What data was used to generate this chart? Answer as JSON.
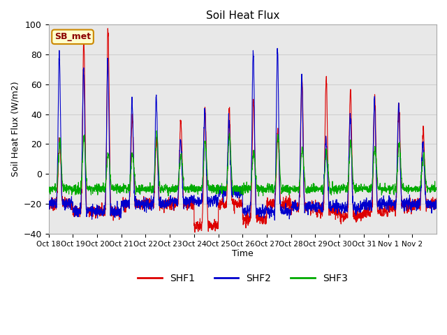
{
  "title": "Soil Heat Flux",
  "ylabel": "Soil Heat Flux (W/m2)",
  "xlabel": "Time",
  "ylim": [
    -40,
    100
  ],
  "grid_color": "#d0d0d0",
  "bg_color": "#e8e8e8",
  "annotation_text": "SB_met",
  "annotation_bg": "#ffffcc",
  "annotation_border": "#cc8800",
  "annotation_text_color": "#8b0000",
  "legend_labels": [
    "SHF1",
    "SHF2",
    "SHF3"
  ],
  "line_colors": [
    "#dd0000",
    "#0000cc",
    "#00aa00"
  ],
  "xtick_labels": [
    "Oct 18",
    "Oct 19",
    "Oct 20",
    "Oct 21",
    "Oct 22",
    "Oct 23",
    "Oct 24",
    "Oct 25",
    "Oct 26",
    "Oct 27",
    "Oct 28",
    "Oct 29",
    "Oct 30",
    "Oct 31",
    "Nov 1",
    "Nov 2"
  ],
  "n_days": 16,
  "pts_per_day": 144,
  "shf1_day_peaks": [
    22,
    90,
    97,
    38,
    23,
    37,
    44,
    44,
    50,
    30,
    65,
    65,
    57,
    52,
    47,
    30
  ],
  "shf2_day_peaks": [
    80,
    70,
    75,
    50,
    52,
    22,
    41,
    38,
    82,
    83,
    65,
    22,
    40,
    48,
    46,
    20
  ],
  "shf3_day_peaks": [
    22,
    25,
    14,
    14,
    27,
    13,
    22,
    26,
    14,
    26,
    17,
    14,
    21,
    18,
    20,
    12
  ],
  "shf1_night_base": [
    -20,
    -25,
    -25,
    -20,
    -20,
    -20,
    -35,
    -20,
    -30,
    -20,
    -22,
    -25,
    -28,
    -25,
    -22,
    -20
  ],
  "shf2_night_base": [
    -20,
    -25,
    -25,
    -20,
    -20,
    -18,
    -18,
    -12,
    -25,
    -25,
    -22,
    -22,
    -22,
    -20,
    -20,
    -20
  ],
  "shf3_night_base": [
    -10,
    -10,
    -10,
    -10,
    -10,
    -10,
    -10,
    -10,
    -10,
    -10,
    -10,
    -10,
    -10,
    -10,
    -10,
    -10
  ]
}
